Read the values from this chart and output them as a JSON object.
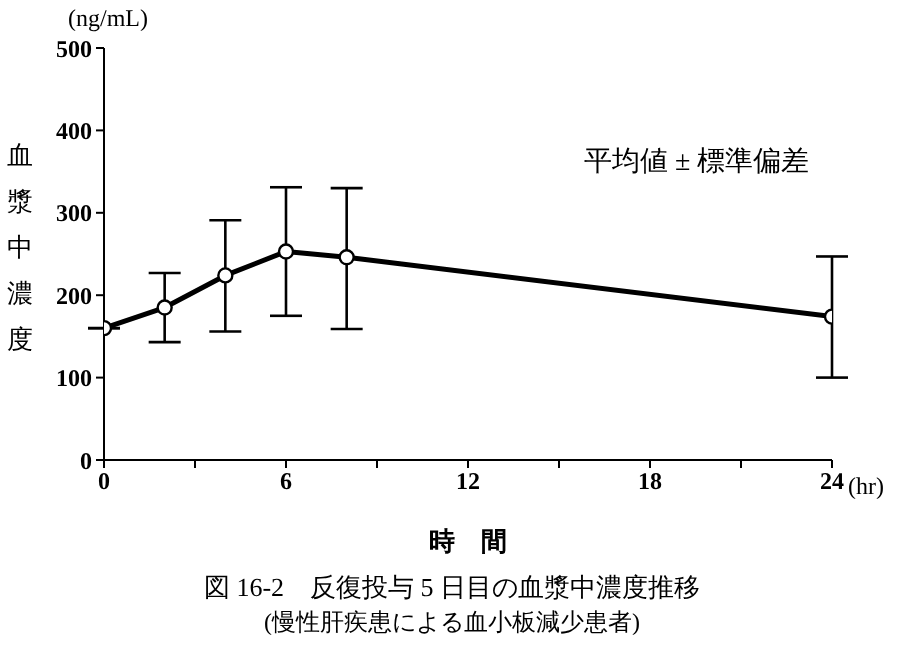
{
  "chart_data": {
    "type": "line",
    "title": "図 16-2　反復投与 5 日目の血漿中濃度推移",
    "subtitle": "(慢性肝疾患による血小板減少患者)",
    "xlabel": "時　間",
    "ylabel": "血漿中濃度",
    "annotations": [
      "(ng/mL)",
      "平均値 ± 標準偏差",
      "(hr)"
    ],
    "x": [
      0,
      2,
      4,
      6,
      8,
      24
    ],
    "series": [
      {
        "color": "#000000",
        "values": [
          160,
          185,
          224,
          253,
          246,
          174
        ],
        "errors": [
          null,
          [
            143,
            227
          ],
          [
            156,
            291
          ],
          [
            175,
            331
          ],
          [
            159,
            330
          ],
          [
            100,
            247
          ]
        ]
      }
    ],
    "xlim": [
      0,
      24
    ],
    "xticks": [
      0,
      {
        "value": 3,
        "label": null
      },
      6,
      {
        "value": 9,
        "label": null
      },
      12,
      {
        "value": 15,
        "label": null
      },
      18,
      {
        "value": 21,
        "label": null
      },
      24
    ],
    "ylim": [
      0,
      500
    ],
    "yticks": [
      0,
      100,
      200,
      300,
      400,
      500
    ],
    "marker": "circle",
    "line_style": "solid"
  }
}
